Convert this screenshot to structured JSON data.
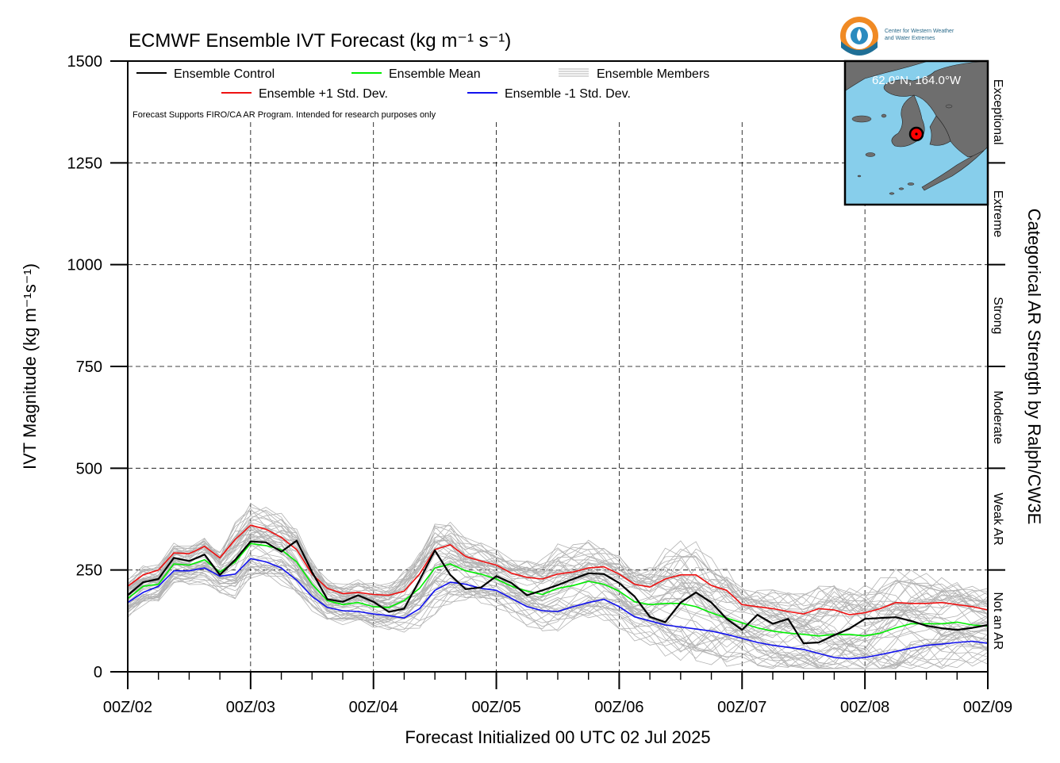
{
  "chart_data": {
    "type": "line",
    "title": "ECMWF Ensemble IVT Forecast (kg m⁻¹ s⁻¹)",
    "xlabel": "Forecast Initialized 00 UTC 02 Jul 2025",
    "ylabel": "IVT Magnitude (kg m⁻¹s⁻¹)",
    "right_label": "Categorical AR Strength by Ralph/CW3E",
    "note": "Forecast Supports FIRO/CA AR Program. Intended for research purposes only",
    "location": "62.0°N, 164.0°W",
    "logo_text": [
      "Center for Western Weather",
      "and Water Extremes"
    ],
    "xlim": [
      0,
      168
    ],
    "ylim": [
      0,
      1500
    ],
    "x_ticks": [
      {
        "x": 0,
        "label": "00Z/02"
      },
      {
        "x": 24,
        "label": "00Z/03"
      },
      {
        "x": 48,
        "label": "00Z/04"
      },
      {
        "x": 72,
        "label": "00Z/05"
      },
      {
        "x": 96,
        "label": "00Z/06"
      },
      {
        "x": 120,
        "label": "00Z/07"
      },
      {
        "x": 144,
        "label": "00Z/08"
      },
      {
        "x": 168,
        "label": "00Z/09"
      }
    ],
    "y_ticks": [
      0,
      250,
      500,
      750,
      1000,
      1250,
      1500
    ],
    "categories": [
      {
        "label": "Not an AR",
        "range": [
          0,
          250
        ]
      },
      {
        "label": "Weak AR",
        "range": [
          250,
          500
        ]
      },
      {
        "label": "Moderate",
        "range": [
          500,
          750
        ]
      },
      {
        "label": "Strong",
        "range": [
          750,
          1000
        ]
      },
      {
        "label": "Extreme",
        "range": [
          1000,
          1250
        ]
      },
      {
        "label": "Exceptional",
        "range": [
          1250,
          1500
        ]
      }
    ],
    "grid": true,
    "legend_position": "top-left",
    "x": [
      0,
      3,
      6,
      9,
      12,
      15,
      18,
      21,
      24,
      27,
      30,
      33,
      36,
      39,
      42,
      45,
      48,
      51,
      54,
      57,
      60,
      63,
      66,
      69,
      72,
      75,
      78,
      81,
      84,
      87,
      90,
      93,
      96,
      99,
      102,
      105,
      108,
      111,
      114,
      117,
      120,
      123,
      126,
      129,
      132,
      135,
      138,
      141,
      144,
      147,
      150,
      153,
      156,
      159,
      162,
      165,
      168
    ],
    "series": [
      {
        "name": "Ensemble Control",
        "color": "#000000",
        "values": [
          188,
          220,
          228,
          280,
          272,
          288,
          238,
          275,
          320,
          318,
          295,
          322,
          245,
          178,
          172,
          188,
          172,
          147,
          155,
          225,
          298,
          238,
          203,
          207,
          235,
          218,
          188,
          200,
          213,
          228,
          242,
          240,
          218,
          185,
          135,
          122,
          170,
          195,
          170,
          130,
          103,
          140,
          118,
          130,
          70,
          72,
          90,
          106,
          130,
          132,
          134,
          125,
          113,
          107,
          103,
          108,
          115
        ]
      },
      {
        "name": "Ensemble Mean",
        "color": "#00ee00",
        "values": [
          180,
          210,
          215,
          265,
          262,
          275,
          245,
          270,
          315,
          310,
          300,
          270,
          215,
          175,
          165,
          170,
          160,
          158,
          175,
          205,
          255,
          265,
          248,
          240,
          228,
          210,
          198,
          190,
          205,
          212,
          222,
          215,
          198,
          172,
          165,
          168,
          168,
          160,
          145,
          132,
          120,
          108,
          100,
          95,
          92,
          88,
          92,
          92,
          88,
          95,
          108,
          118,
          118,
          118,
          122,
          115,
          112
        ]
      },
      {
        "name": "Ensemble +1 Std. Dev.",
        "color": "#ee1111",
        "values": [
          210,
          238,
          250,
          292,
          290,
          308,
          280,
          325,
          360,
          350,
          330,
          300,
          240,
          205,
          192,
          195,
          190,
          188,
          198,
          240,
          300,
          312,
          283,
          272,
          262,
          242,
          232,
          228,
          240,
          245,
          255,
          258,
          240,
          215,
          208,
          228,
          238,
          238,
          212,
          200,
          165,
          160,
          155,
          148,
          142,
          155,
          152,
          140,
          145,
          155,
          170,
          168,
          168,
          170,
          165,
          160,
          152
        ]
      },
      {
        "name": "Ensemble -1 Std. Dev.",
        "color": "#1111ee",
        "values": [
          170,
          195,
          210,
          248,
          248,
          255,
          235,
          240,
          278,
          270,
          255,
          225,
          185,
          158,
          150,
          148,
          142,
          138,
          132,
          155,
          200,
          220,
          215,
          205,
          200,
          180,
          160,
          150,
          148,
          160,
          170,
          178,
          160,
          135,
          125,
          115,
          110,
          105,
          100,
          92,
          82,
          72,
          65,
          60,
          55,
          45,
          35,
          32,
          35,
          42,
          50,
          58,
          65,
          68,
          72,
          75,
          70
        ]
      }
    ],
    "ensemble_members": {
      "name": "Ensemble Members",
      "color": "#b3b3b3"
    }
  }
}
